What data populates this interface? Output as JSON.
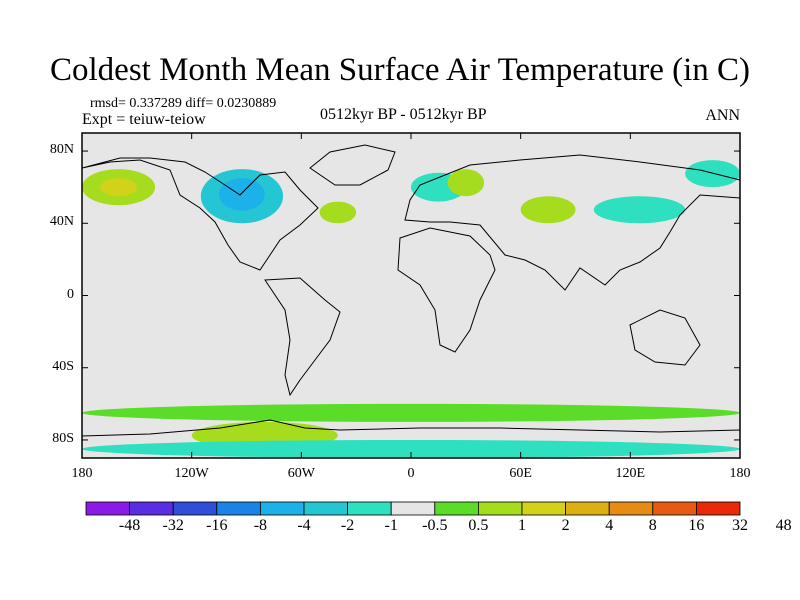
{
  "title": "Coldest Month Mean Surface Air Temperature (in C)",
  "stats": {
    "rmsd_text": "rmsd= 0.337289 diff= 0.0230889"
  },
  "experiment": "Expt = teiuw-teiow",
  "period": "0512kyr BP - 0512kyr BP",
  "season": "ANN",
  "map": {
    "lon_range": [
      -180,
      180
    ],
    "lat_range": [
      -90,
      90
    ],
    "lat_ticks": [
      {
        "value": 80,
        "label": "80N"
      },
      {
        "value": 40,
        "label": "40N"
      },
      {
        "value": 0,
        "label": "0"
      },
      {
        "value": -40,
        "label": "40S"
      },
      {
        "value": -80,
        "label": "80S"
      }
    ],
    "lon_ticks": [
      {
        "value": -180,
        "label": "180"
      },
      {
        "value": -120,
        "label": "120W"
      },
      {
        "value": -60,
        "label": "60W"
      },
      {
        "value": 0,
        "label": "0"
      },
      {
        "value": 60,
        "label": "60E"
      },
      {
        "value": 120,
        "label": "120E"
      },
      {
        "value": 180,
        "label": "180"
      }
    ],
    "background_color": "#e6e6e6",
    "coast_color": "#000000"
  },
  "colorbar": {
    "colors": [
      "#8a1ae6",
      "#5a2de0",
      "#2f4fd8",
      "#1b82e6",
      "#1cb1e8",
      "#23c6d2",
      "#2ee0bf",
      "#e6e6e6",
      "#5adc28",
      "#a6dc1e",
      "#d2d21a",
      "#dcb014",
      "#e68c14",
      "#e65a14",
      "#e62a0a"
    ],
    "labels": [
      "-48",
      "-32",
      "-16",
      "-8",
      "-4",
      "-2",
      "-1",
      "-0.5",
      "0.5",
      "1",
      "2",
      "4",
      "8",
      "16",
      "32",
      "48"
    ]
  },
  "chart_data": {
    "type": "heatmap",
    "title": "Coldest Month Mean Surface Air Temperature (in C)",
    "x_range": [
      -180,
      180
    ],
    "y_range": [
      -90,
      90
    ],
    "levels": [
      -48,
      -32,
      -16,
      -8,
      -4,
      -2,
      -1,
      -0.5,
      0.5,
      1,
      2,
      4,
      8,
      16,
      32,
      48
    ],
    "regions": [
      {
        "lon": [
          -180,
          -140
        ],
        "lat": [
          50,
          70
        ],
        "value": 1.5
      },
      {
        "lon": [
          -170,
          -150
        ],
        "lat": [
          55,
          65
        ],
        "value": 3
      },
      {
        "lon": [
          -115,
          -70
        ],
        "lat": [
          40,
          70
        ],
        "value": -1.5
      },
      {
        "lon": [
          -105,
          -80
        ],
        "lat": [
          47,
          65
        ],
        "value": -2.5
      },
      {
        "lon": [
          -50,
          -30
        ],
        "lat": [
          40,
          52
        ],
        "value": 1.5
      },
      {
        "lon": [
          0,
          30
        ],
        "lat": [
          52,
          68
        ],
        "value": -0.8
      },
      {
        "lon": [
          20,
          40
        ],
        "lat": [
          55,
          70
        ],
        "value": 1.2
      },
      {
        "lon": [
          60,
          90
        ],
        "lat": [
          40,
          55
        ],
        "value": 1.2
      },
      {
        "lon": [
          100,
          150
        ],
        "lat": [
          40,
          55
        ],
        "value": -0.8
      },
      {
        "lon": [
          150,
          180
        ],
        "lat": [
          60,
          75
        ],
        "value": -1
      },
      {
        "lon": [
          -120,
          -40
        ],
        "lat": [
          -85,
          -70
        ],
        "value": 1.5
      },
      {
        "lon": [
          -180,
          180
        ],
        "lat": [
          -70,
          -60
        ],
        "value": 0.8
      },
      {
        "lon": [
          -180,
          180
        ],
        "lat": [
          -90,
          -80
        ],
        "value": -0.8
      }
    ]
  }
}
